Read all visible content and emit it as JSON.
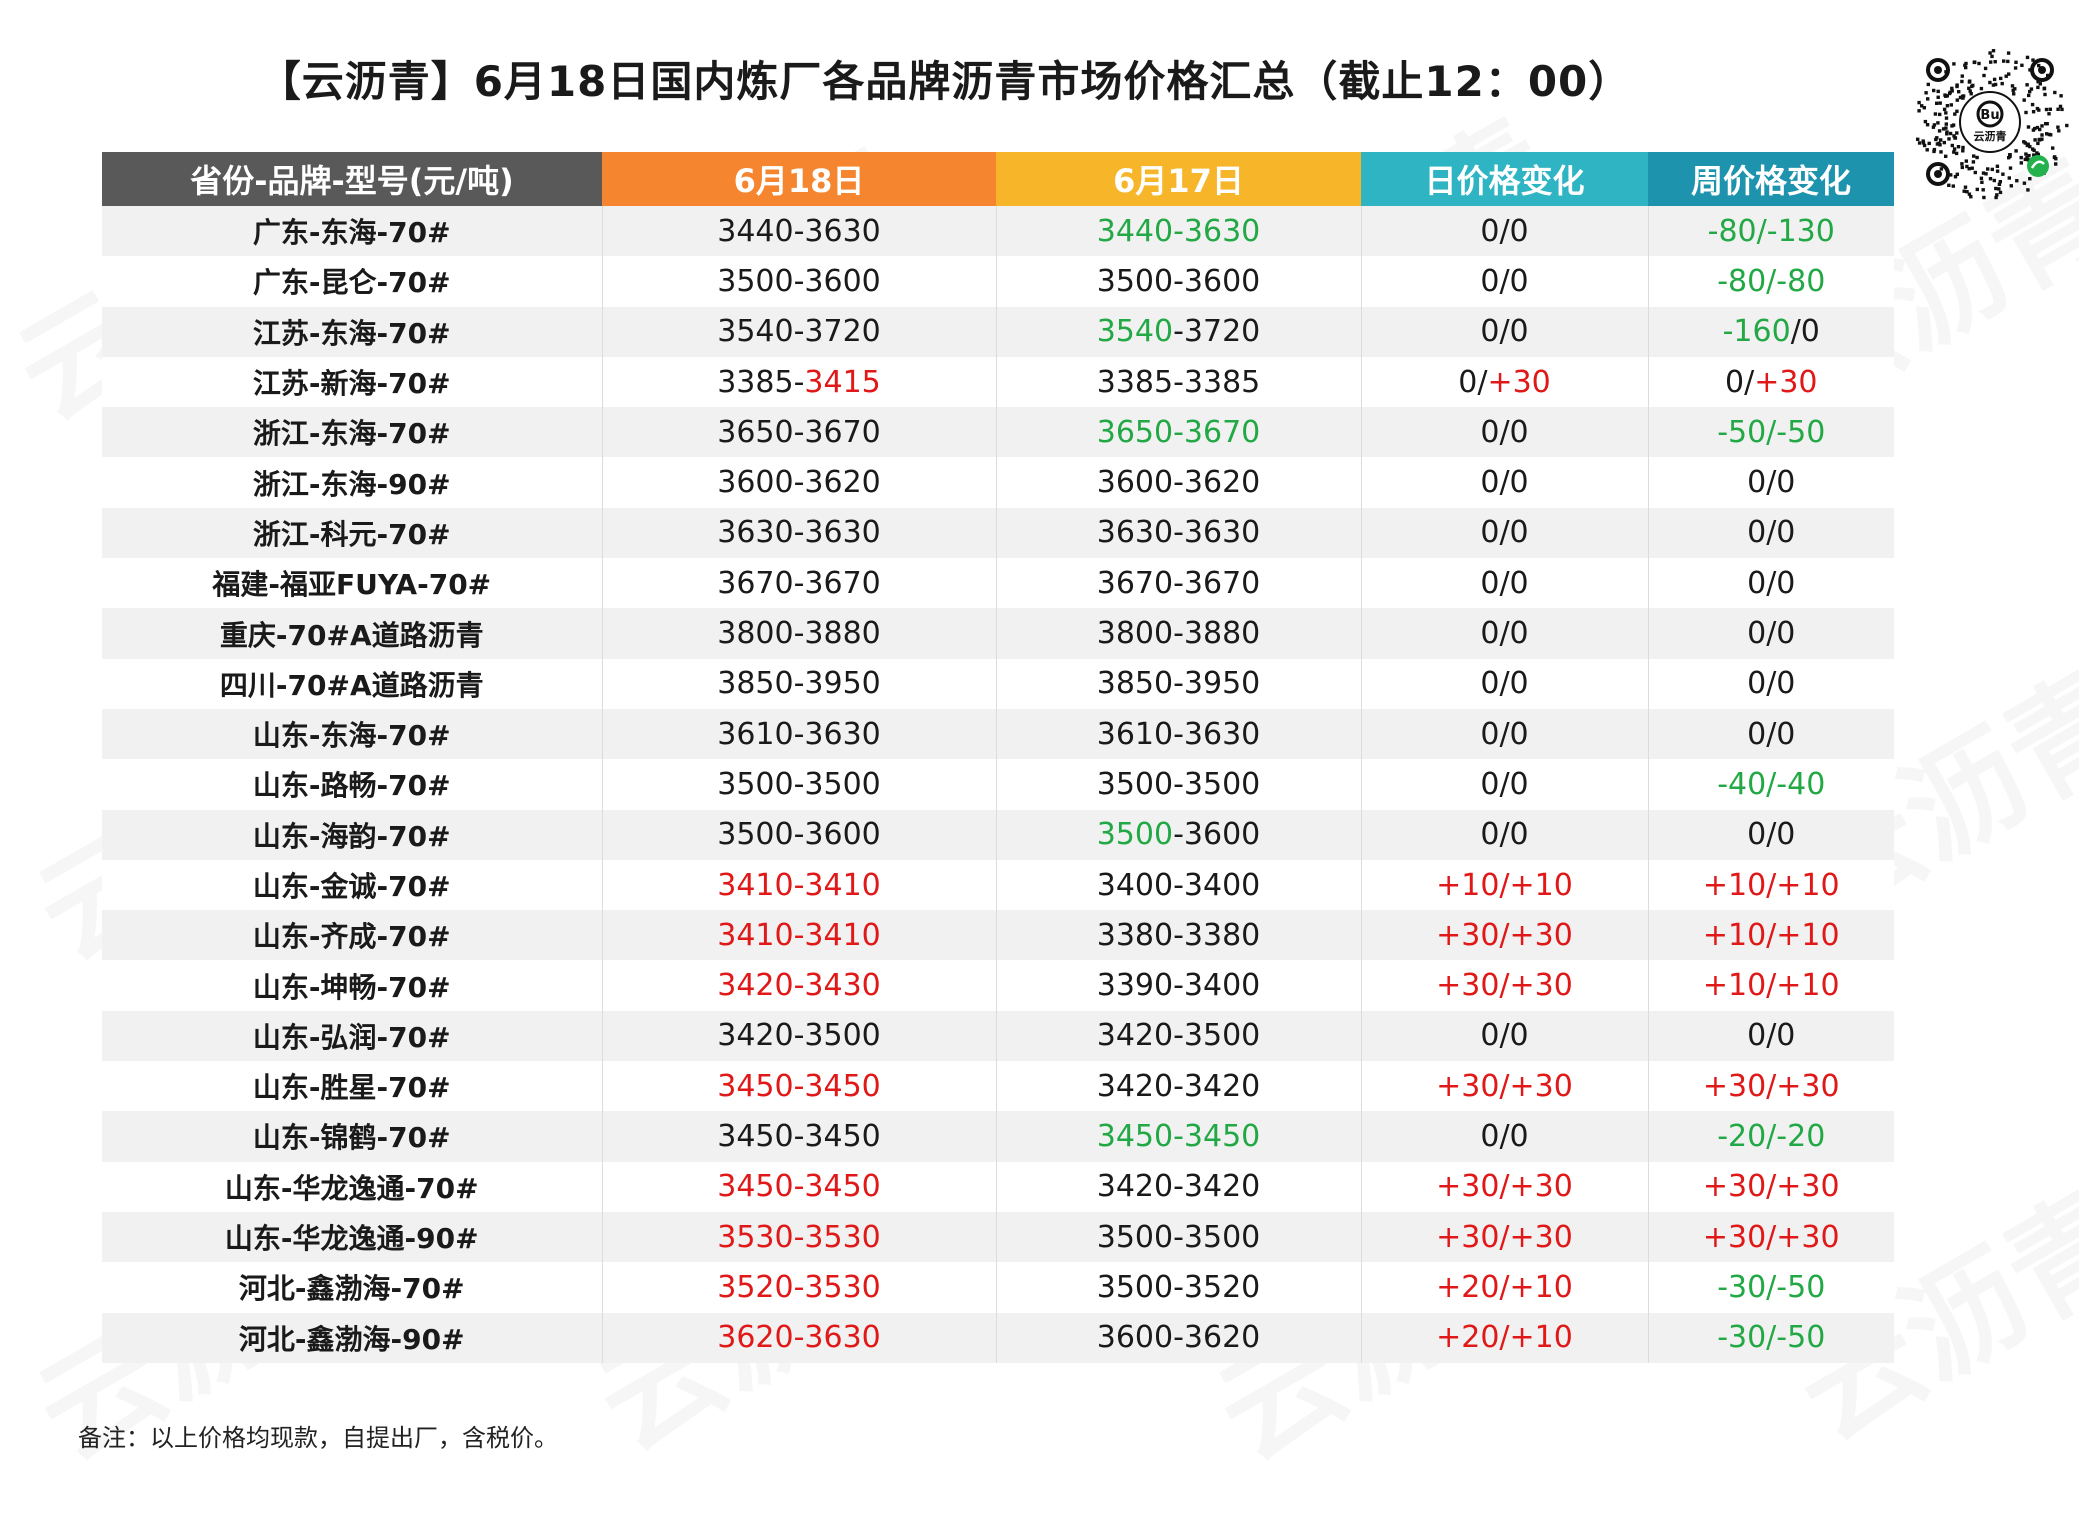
{
  "title": "【云沥青】6月18日国内炼厂各品牌沥青市场价格汇总（截止12：00）",
  "logo_text": "云沥青",
  "watermark_text": "云沥青",
  "colors": {
    "up": "#e01818",
    "down": "#22a845"
  },
  "table": {
    "headers": [
      "省份-品牌-型号(元/吨)",
      "6月18日",
      "6月17日",
      "日价格变化",
      "周价格变化"
    ],
    "rows": [
      {
        "name": "广东-东海-70#",
        "d18": [
          [
            "3440-3630",
            ""
          ]
        ],
        "d17": [
          [
            "3440-3630",
            "down"
          ]
        ],
        "day": [
          [
            "0/0",
            ""
          ]
        ],
        "week": [
          [
            "-80/-130",
            "down"
          ]
        ]
      },
      {
        "name": "广东-昆仑-70#",
        "d18": [
          [
            "3500-3600",
            ""
          ]
        ],
        "d17": [
          [
            "3500-3600",
            ""
          ]
        ],
        "day": [
          [
            "0/0",
            ""
          ]
        ],
        "week": [
          [
            "-80/-80",
            "down"
          ]
        ]
      },
      {
        "name": "江苏-东海-70#",
        "d18": [
          [
            "3540-3720",
            ""
          ]
        ],
        "d17": [
          [
            "3540",
            "down"
          ],
          [
            "-3720",
            ""
          ]
        ],
        "day": [
          [
            "0/0",
            ""
          ]
        ],
        "week": [
          [
            "-160",
            "down"
          ],
          [
            "/0",
            ""
          ]
        ]
      },
      {
        "name": "江苏-新海-70#",
        "d18": [
          [
            "3385-",
            ""
          ],
          [
            "3415",
            "up"
          ]
        ],
        "d17": [
          [
            "3385-3385",
            ""
          ]
        ],
        "day": [
          [
            "0/",
            ""
          ],
          [
            "+30",
            "up"
          ]
        ],
        "week": [
          [
            "0/",
            ""
          ],
          [
            "+30",
            "up"
          ]
        ]
      },
      {
        "name": "浙江-东海-70#",
        "d18": [
          [
            "3650-3670",
            ""
          ]
        ],
        "d17": [
          [
            "3650-3670",
            "down"
          ]
        ],
        "day": [
          [
            "0/0",
            ""
          ]
        ],
        "week": [
          [
            "-50/-50",
            "down"
          ]
        ]
      },
      {
        "name": "浙江-东海-90#",
        "d18": [
          [
            "3600-3620",
            ""
          ]
        ],
        "d17": [
          [
            "3600-3620",
            ""
          ]
        ],
        "day": [
          [
            "0/0",
            ""
          ]
        ],
        "week": [
          [
            "0/0",
            ""
          ]
        ]
      },
      {
        "name": "浙江-科元-70#",
        "d18": [
          [
            "3630-3630",
            ""
          ]
        ],
        "d17": [
          [
            "3630-3630",
            ""
          ]
        ],
        "day": [
          [
            "0/0",
            ""
          ]
        ],
        "week": [
          [
            "0/0",
            ""
          ]
        ]
      },
      {
        "name": "福建-福亚FUYA-70#",
        "d18": [
          [
            "3670-3670",
            ""
          ]
        ],
        "d17": [
          [
            "3670-3670",
            ""
          ]
        ],
        "day": [
          [
            "0/0",
            ""
          ]
        ],
        "week": [
          [
            "0/0",
            ""
          ]
        ]
      },
      {
        "name": "重庆-70#A道路沥青",
        "d18": [
          [
            "3800-3880",
            ""
          ]
        ],
        "d17": [
          [
            "3800-3880",
            ""
          ]
        ],
        "day": [
          [
            "0/0",
            ""
          ]
        ],
        "week": [
          [
            "0/0",
            ""
          ]
        ]
      },
      {
        "name": "四川-70#A道路沥青",
        "d18": [
          [
            "3850-3950",
            ""
          ]
        ],
        "d17": [
          [
            "3850-3950",
            ""
          ]
        ],
        "day": [
          [
            "0/0",
            ""
          ]
        ],
        "week": [
          [
            "0/0",
            ""
          ]
        ]
      },
      {
        "name": "山东-东海-70#",
        "d18": [
          [
            "3610-3630",
            ""
          ]
        ],
        "d17": [
          [
            "3610-3630",
            ""
          ]
        ],
        "day": [
          [
            "0/0",
            ""
          ]
        ],
        "week": [
          [
            "0/0",
            ""
          ]
        ]
      },
      {
        "name": "山东-路畅-70#",
        "d18": [
          [
            "3500-3500",
            ""
          ]
        ],
        "d17": [
          [
            "3500-3500",
            ""
          ]
        ],
        "day": [
          [
            "0/0",
            ""
          ]
        ],
        "week": [
          [
            "-40/-40",
            "down"
          ]
        ]
      },
      {
        "name": "山东-海韵-70#",
        "d18": [
          [
            "3500-3600",
            ""
          ]
        ],
        "d17": [
          [
            "3500",
            "down"
          ],
          [
            "-3600",
            ""
          ]
        ],
        "day": [
          [
            "0/0",
            ""
          ]
        ],
        "week": [
          [
            "0/0",
            ""
          ]
        ]
      },
      {
        "name": "山东-金诚-70#",
        "d18": [
          [
            "3410-3410",
            "up"
          ]
        ],
        "d17": [
          [
            "3400-3400",
            ""
          ]
        ],
        "day": [
          [
            "+10/+10",
            "up"
          ]
        ],
        "week": [
          [
            "+10/+10",
            "up"
          ]
        ]
      },
      {
        "name": "山东-齐成-70#",
        "d18": [
          [
            "3410-3410",
            "up"
          ]
        ],
        "d17": [
          [
            "3380-3380",
            ""
          ]
        ],
        "day": [
          [
            "+30/+30",
            "up"
          ]
        ],
        "week": [
          [
            "+10/+10",
            "up"
          ]
        ]
      },
      {
        "name": "山东-坤畅-70#",
        "d18": [
          [
            "3420-3430",
            "up"
          ]
        ],
        "d17": [
          [
            "3390-3400",
            ""
          ]
        ],
        "day": [
          [
            "+30/+30",
            "up"
          ]
        ],
        "week": [
          [
            "+10/+10",
            "up"
          ]
        ]
      },
      {
        "name": "山东-弘润-70#",
        "d18": [
          [
            "3420-3500",
            ""
          ]
        ],
        "d17": [
          [
            "3420-3500",
            ""
          ]
        ],
        "day": [
          [
            "0/0",
            ""
          ]
        ],
        "week": [
          [
            "0/0",
            ""
          ]
        ]
      },
      {
        "name": "山东-胜星-70#",
        "d18": [
          [
            "3450-3450",
            "up"
          ]
        ],
        "d17": [
          [
            "3420-3420",
            ""
          ]
        ],
        "day": [
          [
            "+30/+30",
            "up"
          ]
        ],
        "week": [
          [
            "+30/+30",
            "up"
          ]
        ]
      },
      {
        "name": "山东-锦鹤-70#",
        "d18": [
          [
            "3450-3450",
            ""
          ]
        ],
        "d17": [
          [
            "3450-3450",
            "down"
          ]
        ],
        "day": [
          [
            "0/0",
            ""
          ]
        ],
        "week": [
          [
            "-20/-20",
            "down"
          ]
        ]
      },
      {
        "name": "山东-华龙逸通-70#",
        "d18": [
          [
            "3450-3450",
            "up"
          ]
        ],
        "d17": [
          [
            "3420-3420",
            ""
          ]
        ],
        "day": [
          [
            "+30/+30",
            "up"
          ]
        ],
        "week": [
          [
            "+30/+30",
            "up"
          ]
        ]
      },
      {
        "name": "山东-华龙逸通-90#",
        "d18": [
          [
            "3530-3530",
            "up"
          ]
        ],
        "d17": [
          [
            "3500-3500",
            ""
          ]
        ],
        "day": [
          [
            "+30/+30",
            "up"
          ]
        ],
        "week": [
          [
            "+30/+30",
            "up"
          ]
        ]
      },
      {
        "name": "河北-鑫渤海-70#",
        "d18": [
          [
            "3520-3530",
            "up"
          ]
        ],
        "d17": [
          [
            "3500-3520",
            ""
          ]
        ],
        "day": [
          [
            "+20/+10",
            "up"
          ]
        ],
        "week": [
          [
            "-30/-50",
            "down"
          ]
        ]
      },
      {
        "name": "河北-鑫渤海-90#",
        "d18": [
          [
            "3620-3630",
            "up"
          ]
        ],
        "d17": [
          [
            "3600-3620",
            ""
          ]
        ],
        "day": [
          [
            "+20/+10",
            "up"
          ]
        ],
        "week": [
          [
            "-30/-50",
            "down"
          ]
        ]
      }
    ]
  },
  "note": "备注：以上价格均现款，自提出厂，含税价。"
}
